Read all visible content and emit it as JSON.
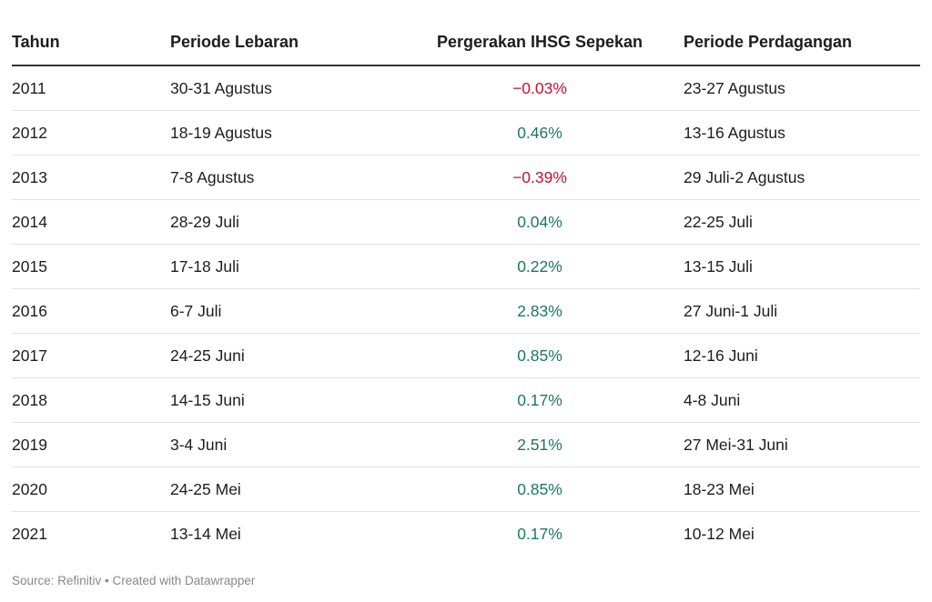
{
  "colors": {
    "positive": "#1a7a57",
    "negative": "#c8102e",
    "header_rule": "#333333",
    "row_rule": "#e2e2e2",
    "footer_text": "#888888"
  },
  "chart_data": {
    "type": "table",
    "columns": [
      "Tahun",
      "Periode Lebaran",
      "Pergerakan IHSG Sepekan",
      "Periode Perdagangan"
    ],
    "rows": [
      {
        "tahun": "2011",
        "lebaran": "30-31 Agustus",
        "ihsg": "−0.03%",
        "ihsg_value": -0.03,
        "perdagangan": "23-27 Agustus"
      },
      {
        "tahun": "2012",
        "lebaran": "18-19 Agustus",
        "ihsg": "0.46%",
        "ihsg_value": 0.46,
        "perdagangan": "13-16 Agustus"
      },
      {
        "tahun": "2013",
        "lebaran": "7-8 Agustus",
        "ihsg": "−0.39%",
        "ihsg_value": -0.39,
        "perdagangan": "29 Juli-2 Agustus"
      },
      {
        "tahun": "2014",
        "lebaran": "28-29 Juli",
        "ihsg": "0.04%",
        "ihsg_value": 0.04,
        "perdagangan": "22-25 Juli"
      },
      {
        "tahun": "2015",
        "lebaran": "17-18 Juli",
        "ihsg": "0.22%",
        "ihsg_value": 0.22,
        "perdagangan": "13-15 Juli"
      },
      {
        "tahun": "2016",
        "lebaran": "6-7 Juli",
        "ihsg": "2.83%",
        "ihsg_value": 2.83,
        "perdagangan": "27 Juni-1 Juli"
      },
      {
        "tahun": "2017",
        "lebaran": "24-25 Juni",
        "ihsg": "0.85%",
        "ihsg_value": 0.85,
        "perdagangan": "12-16 Juni"
      },
      {
        "tahun": "2018",
        "lebaran": "14-15 Juni",
        "ihsg": "0.17%",
        "ihsg_value": 0.17,
        "perdagangan": "4-8 Juni"
      },
      {
        "tahun": "2019",
        "lebaran": "3-4 Juni",
        "ihsg": "2.51%",
        "ihsg_value": 2.51,
        "perdagangan": "27 Mei-31 Juni"
      },
      {
        "tahun": "2020",
        "lebaran": "24-25 Mei",
        "ihsg": "0.85%",
        "ihsg_value": 0.85,
        "perdagangan": "18-23 Mei"
      },
      {
        "tahun": "2021",
        "lebaran": "13-14 Mei",
        "ihsg": "0.17%",
        "ihsg_value": 0.17,
        "perdagangan": "10-12 Mei"
      }
    ]
  },
  "footer": "Source: Refinitiv • Created with Datawrapper"
}
